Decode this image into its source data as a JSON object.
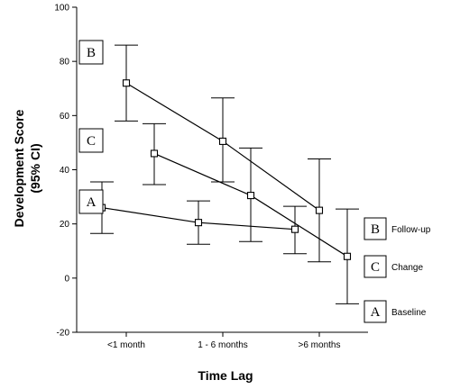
{
  "chart_data": {
    "type": "line",
    "xlabel": "Time Lag",
    "ylabel_line1": "Development Score",
    "ylabel_line2": "(95% CI)",
    "categories": [
      "<1 month",
      "1 - 6 months",
      ">6 months"
    ],
    "ylim": [
      -20,
      100
    ],
    "yticks": [
      -20,
      0,
      20,
      40,
      60,
      80,
      100
    ],
    "grid": false,
    "markers": "open-square",
    "error_bars": "95% CI",
    "series": [
      {
        "code": "B",
        "name": "Follow-up",
        "values": [
          72,
          50.5,
          25
        ],
        "ci_lower": [
          58,
          35.5,
          6
        ],
        "ci_upper": [
          86,
          66.5,
          44
        ]
      },
      {
        "code": "C",
        "name": "Change",
        "values": [
          46,
          30.5,
          8
        ],
        "ci_lower": [
          34.5,
          13.5,
          -9.5
        ],
        "ci_upper": [
          57,
          48,
          25.5
        ]
      },
      {
        "code": "A",
        "name": "Baseline",
        "values": [
          26,
          20.5,
          18
        ],
        "ci_lower": [
          16.5,
          12.5,
          9
        ],
        "ci_upper": [
          35.5,
          28.5,
          26.5
        ]
      }
    ],
    "legend_position": "right"
  }
}
